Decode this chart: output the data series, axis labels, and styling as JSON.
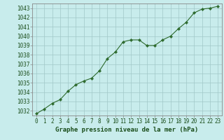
{
  "x": [
    0,
    1,
    2,
    3,
    4,
    5,
    6,
    7,
    8,
    9,
    10,
    11,
    12,
    13,
    14,
    15,
    16,
    17,
    18,
    19,
    20,
    21,
    22,
    23
  ],
  "y": [
    1031.7,
    1032.2,
    1032.8,
    1033.2,
    1034.1,
    1034.8,
    1035.2,
    1035.5,
    1036.3,
    1037.6,
    1038.3,
    1039.4,
    1039.6,
    1039.6,
    1039.0,
    1039.0,
    1039.6,
    1040.0,
    1040.8,
    1041.5,
    1042.5,
    1042.9,
    1043.0,
    1043.2
  ],
  "line_color": "#2d6a2d",
  "marker": "D",
  "marker_size": 2.2,
  "bg_color": "#c8ecec",
  "grid_color": "#a0c8c8",
  "ylim": [
    1031.5,
    1043.5
  ],
  "yticks": [
    1032,
    1033,
    1034,
    1035,
    1036,
    1037,
    1038,
    1039,
    1040,
    1041,
    1042,
    1043
  ],
  "xlim": [
    -0.5,
    23.5
  ],
  "xticks": [
    0,
    1,
    2,
    3,
    4,
    5,
    6,
    7,
    8,
    9,
    10,
    11,
    12,
    13,
    14,
    15,
    16,
    17,
    18,
    19,
    20,
    21,
    22,
    23
  ],
  "xlabel": "Graphe pression niveau de la mer (hPa)",
  "xlabel_fontsize": 6.5,
  "tick_fontsize": 5.5,
  "tick_color": "#1a4d1a",
  "axis_color": "#888888",
  "label_color": "#1a4d1a",
  "line_width": 0.8
}
